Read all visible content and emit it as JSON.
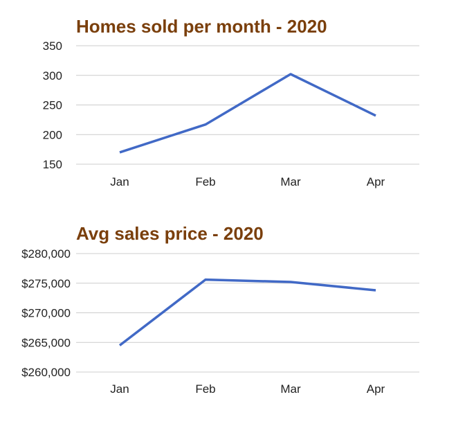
{
  "colors": {
    "title": "#7a3f0c",
    "line": "#4169c6",
    "grid": "#cccccc",
    "text": "#222222",
    "background": "#ffffff"
  },
  "chart_data": [
    {
      "type": "line",
      "title": "Homes sold per month - 2020",
      "categories": [
        "Jan",
        "Feb",
        "Mar",
        "Apr"
      ],
      "series": [
        {
          "values": [
            170,
            217,
            302,
            232
          ]
        }
      ],
      "ylim": [
        150,
        350
      ],
      "yticks": [
        150,
        200,
        250,
        300,
        350
      ],
      "ytick_labels": [
        "150",
        "200",
        "250",
        "300",
        "350"
      ],
      "grid": true,
      "legend": "none",
      "xlabel": "",
      "ylabel": ""
    },
    {
      "type": "line",
      "title": "Avg sales price - 2020",
      "categories": [
        "Jan",
        "Feb",
        "Mar",
        "Apr"
      ],
      "series": [
        {
          "values": [
            264500,
            275600,
            275200,
            273800
          ]
        }
      ],
      "ylim": [
        260000,
        280000
      ],
      "yticks": [
        260000,
        265000,
        270000,
        275000,
        280000
      ],
      "ytick_labels": [
        "$260,000",
        "$265,000",
        "$270,000",
        "$275,000",
        "$280,000"
      ],
      "grid": true,
      "legend": "none",
      "xlabel": "",
      "ylabel": ""
    }
  ]
}
